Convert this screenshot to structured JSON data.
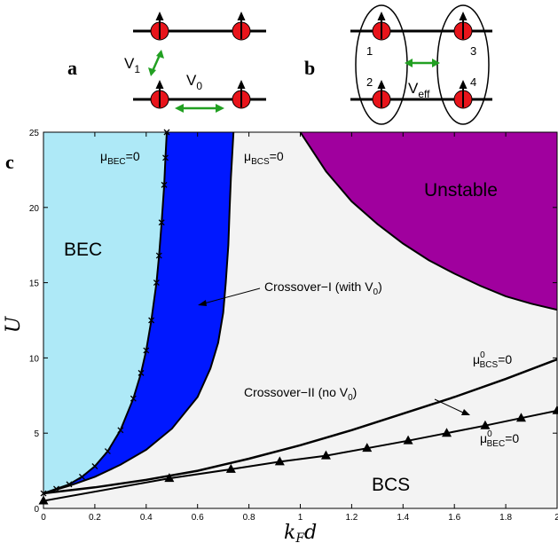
{
  "panels": {
    "a_label": "a",
    "b_label": "b",
    "c_label": "c",
    "a_v1": "V",
    "a_v1_sub": "1",
    "a_v0": "V",
    "a_v0_sub": "0",
    "b_veff": "V",
    "b_veff_sub": "eff",
    "b_sites": [
      "1",
      "2",
      "3",
      "4"
    ]
  },
  "colors": {
    "atom": "#e8141b",
    "arrow": "#22a022",
    "bec": "#aee9f7",
    "crossover": "#0018ff",
    "unstable": "#a0009e",
    "normal": "#f3f3f3"
  },
  "chart_data": {
    "type": "area",
    "xlabel_main": "k",
    "xlabel_sub": "F",
    "xlabel_tail": "d",
    "ylabel": "U",
    "xlim": [
      0,
      2
    ],
    "ylim": [
      0,
      25
    ],
    "x_ticks": [
      "0",
      "0.2",
      "0.4",
      "0.6",
      "0.8",
      "1",
      "1.2",
      "1.4",
      "1.6",
      "1.8",
      "2"
    ],
    "y_ticks": [
      "0",
      "5",
      "10",
      "15",
      "20",
      "25"
    ],
    "regions": {
      "bec": "BEC",
      "bcs": "BCS",
      "unstable": "Unstable",
      "crossover_1": "Crossover−I (with V",
      "crossover_1_sub": "0",
      "crossover_1_tail": ")",
      "crossover_2": "Crossover−II (no V",
      "crossover_2_sub": "0",
      "crossover_2_tail": ")"
    },
    "curve_labels": {
      "mu_bec": "μ",
      "mu_bec_sub": "BEC",
      "mu_bec_tail": "=0",
      "mu_bcs": "μ",
      "mu_bcs_sub": "BCS",
      "mu_bcs_tail": "=0",
      "mu0_bcs": "μ",
      "mu0_bcs_sup": "0",
      "mu0_bcs_sub": "BCS",
      "mu0_bcs_tail": "=0",
      "mu0_bec": "μ",
      "mu0_bec_sup": "0",
      "mu0_bec_sub": "BEC",
      "mu0_bec_tail": "=0"
    },
    "series": [
      {
        "name": "μBEC=0",
        "marker": "x",
        "x": [
          0.0,
          0.05,
          0.1,
          0.15,
          0.2,
          0.25,
          0.3,
          0.35,
          0.38,
          0.4,
          0.42,
          0.44,
          0.45,
          0.46,
          0.47,
          0.475,
          0.48
        ],
        "y": [
          1.0,
          1.3,
          1.6,
          2.1,
          2.8,
          3.8,
          5.2,
          7.3,
          9.0,
          10.5,
          12.5,
          15.0,
          16.8,
          19.0,
          21.5,
          23.3,
          25.0
        ]
      },
      {
        "name": "μBCS=0",
        "marker": "none",
        "x": [
          0.0,
          0.1,
          0.2,
          0.3,
          0.4,
          0.5,
          0.6,
          0.65,
          0.68,
          0.7,
          0.71,
          0.72,
          0.725,
          0.73,
          0.74
        ],
        "y": [
          1.0,
          1.5,
          2.1,
          2.9,
          3.9,
          5.3,
          7.4,
          9.3,
          11.0,
          13.0,
          15.0,
          17.5,
          20.0,
          22.0,
          25.0
        ]
      },
      {
        "name": "Unstable boundary",
        "marker": "none",
        "x": [
          1.0,
          1.1,
          1.2,
          1.3,
          1.4,
          1.5,
          1.6,
          1.7,
          1.8,
          1.9,
          2.0
        ],
        "y": [
          25.0,
          22.4,
          20.4,
          18.9,
          17.6,
          16.5,
          15.6,
          14.8,
          14.1,
          13.6,
          13.2
        ]
      },
      {
        "name": "μ0BCS=0",
        "marker": "none",
        "x": [
          0.0,
          0.2,
          0.4,
          0.6,
          0.8,
          1.0,
          1.2,
          1.4,
          1.6,
          1.8,
          2.0
        ],
        "y": [
          1.0,
          1.4,
          1.9,
          2.5,
          3.3,
          4.2,
          5.2,
          6.3,
          7.4,
          8.6,
          9.9
        ]
      },
      {
        "name": "μ0BEC=0",
        "marker": "triangle",
        "x": [
          0.0,
          0.49,
          0.73,
          0.92,
          1.1,
          1.26,
          1.42,
          1.57,
          1.72,
          1.86,
          2.0
        ],
        "y": [
          0.5,
          2.0,
          2.6,
          3.1,
          3.5,
          4.0,
          4.5,
          5.0,
          5.5,
          6.0,
          6.5
        ]
      }
    ]
  }
}
